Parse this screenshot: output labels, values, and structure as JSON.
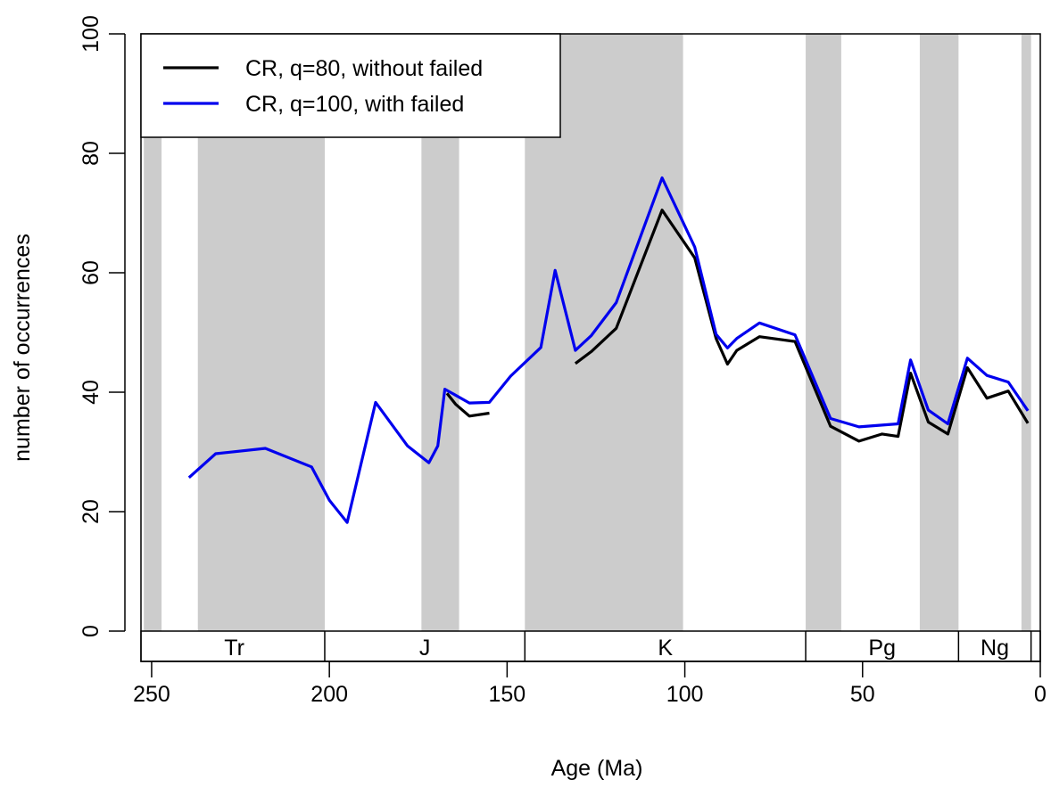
{
  "chart_data": {
    "type": "line",
    "xlabel": "Age (Ma)",
    "ylabel": "number of occurrences",
    "xlim": [
      253,
      0
    ],
    "ylim": [
      0,
      100
    ],
    "x_ticks": [
      250,
      200,
      150,
      100,
      50,
      0
    ],
    "y_ticks": [
      0,
      20,
      40,
      60,
      80,
      100
    ],
    "grid": false,
    "legend_position": "top-left",
    "shaded_intervals": [
      [
        252.2,
        247.2
      ],
      [
        237.0,
        201.3
      ],
      [
        174.1,
        163.5
      ],
      [
        145.0,
        100.5
      ],
      [
        66.0,
        56.0
      ],
      [
        33.9,
        23.0
      ],
      [
        5.3,
        2.6
      ]
    ],
    "periods": [
      {
        "label": "Tr",
        "start": 252.2,
        "end": 201.3
      },
      {
        "label": "J",
        "start": 201.3,
        "end": 145.0
      },
      {
        "label": "K",
        "start": 145.0,
        "end": 66.0
      },
      {
        "label": "Pg",
        "start": 66.0,
        "end": 23.0
      },
      {
        "label": "Ng",
        "start": 23.0,
        "end": 2.6
      }
    ],
    "series": [
      {
        "name": "CR, q=80, without failed",
        "color": "#000000",
        "segments": [
          [
            [
              166.9,
              39.8
            ],
            [
              164.5,
              38.0
            ],
            [
              160.6,
              36.0
            ],
            [
              155.0,
              36.5
            ]
          ],
          [
            [
              130.8,
              44.8
            ],
            [
              126.3,
              46.8
            ],
            [
              119.3,
              50.7
            ],
            [
              106.4,
              70.5
            ],
            [
              97.2,
              62.5
            ],
            [
              91.2,
              49.0
            ],
            [
              88.0,
              44.7
            ],
            [
              85.4,
              47.0
            ],
            [
              79.0,
              49.3
            ],
            [
              69.0,
              48.5
            ],
            [
              59.0,
              34.3
            ],
            [
              51.0,
              31.8
            ],
            [
              44.5,
              33.0
            ],
            [
              40.0,
              32.6
            ],
            [
              36.5,
              43.2
            ],
            [
              31.5,
              35.0
            ],
            [
              26.0,
              33.0
            ],
            [
              20.5,
              44.1
            ],
            [
              15.0,
              39.0
            ],
            [
              9.0,
              40.2
            ],
            [
              3.5,
              34.8
            ]
          ]
        ]
      },
      {
        "name": "CR, q=100, with failed",
        "color": "#0000ee",
        "segments": [
          [
            [
              239.5,
              25.7
            ],
            [
              232.0,
              29.7
            ],
            [
              218.0,
              30.6
            ],
            [
              205.0,
              27.5
            ],
            [
              200.0,
              21.9
            ],
            [
              195.0,
              18.2
            ],
            [
              187.0,
              38.3
            ],
            [
              178.0,
              31.0
            ],
            [
              172.0,
              28.2
            ],
            [
              169.5,
              31.0
            ],
            [
              167.5,
              40.5
            ],
            [
              160.6,
              38.2
            ],
            [
              155.0,
              38.3
            ],
            [
              149.0,
              42.7
            ],
            [
              140.5,
              47.5
            ],
            [
              136.5,
              60.4
            ],
            [
              130.8,
              47.0
            ],
            [
              126.3,
              49.5
            ],
            [
              119.3,
              55.0
            ],
            [
              106.4,
              75.9
            ],
            [
              97.2,
              64.3
            ],
            [
              91.2,
              49.7
            ],
            [
              88.0,
              47.4
            ],
            [
              85.4,
              49.0
            ],
            [
              79.0,
              51.6
            ],
            [
              69.0,
              49.6
            ],
            [
              59.0,
              35.6
            ],
            [
              51.0,
              34.2
            ],
            [
              40.0,
              34.7
            ],
            [
              36.5,
              45.4
            ],
            [
              31.5,
              37.0
            ],
            [
              26.0,
              34.7
            ],
            [
              20.5,
              45.7
            ],
            [
              15.0,
              42.8
            ],
            [
              9.0,
              41.7
            ],
            [
              3.5,
              36.9
            ]
          ]
        ]
      }
    ]
  }
}
